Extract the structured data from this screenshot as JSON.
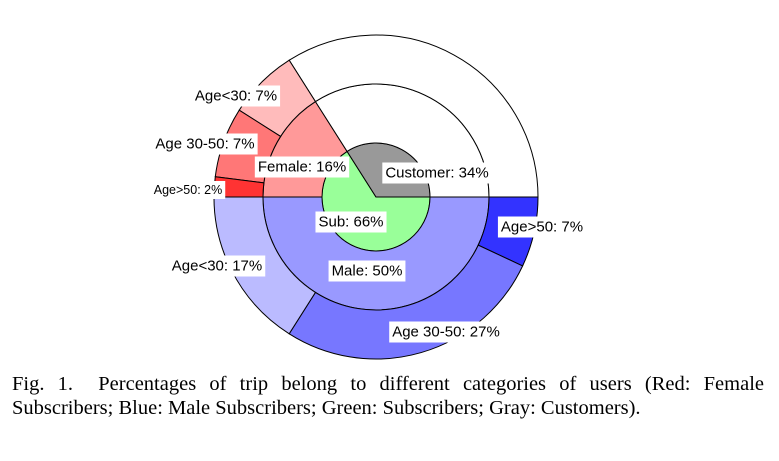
{
  "chart_data": {
    "type": "sunburst",
    "title": "",
    "unit": "%",
    "rings": {
      "inner": [
        {
          "label": "Sub: 66%",
          "name": "Sub",
          "value": 66,
          "color": "#99ff99"
        },
        {
          "label": "Customer: 34%",
          "name": "Customer",
          "value": 34,
          "color": "#999999"
        }
      ],
      "middle": [
        {
          "label": "Male: 50%",
          "name": "Male",
          "value": 50,
          "color": "#9999ff"
        },
        {
          "label": "Female: 16%",
          "name": "Female",
          "value": 16,
          "color": "#ff9999"
        },
        {
          "label": "",
          "name": "Customer",
          "value": 34,
          "color": "#ffffff"
        }
      ],
      "outer": [
        {
          "label": "Age>50: 7%",
          "group": "Male",
          "value": 7,
          "color": "#3333ff"
        },
        {
          "label": "Age 30-50: 27%",
          "group": "Male",
          "value": 27,
          "color": "#7777ff"
        },
        {
          "label": "Age<30: 17%",
          "group": "Male",
          "value": 17,
          "color": "#bbbbff"
        },
        {
          "label": "Age>50: 2%",
          "group": "Female",
          "value": 2,
          "color": "#ff3333"
        },
        {
          "label": "Age 30-50: 7%",
          "group": "Female",
          "value": 7,
          "color": "#ff7777"
        },
        {
          "label": "Age<30: 7%",
          "group": "Female",
          "value": 7,
          "color": "#ffbbbb"
        },
        {
          "label": "",
          "group": "Customer",
          "value": 34,
          "color": "#ffffff"
        }
      ]
    }
  },
  "caption": {
    "figure_label": "Fig. 1.",
    "text": "Percentages of trip belong to different categories of users (Red: Female Subscribers; Blue: Male Subscribers; Green: Subscribers; Gray: Customers)."
  }
}
